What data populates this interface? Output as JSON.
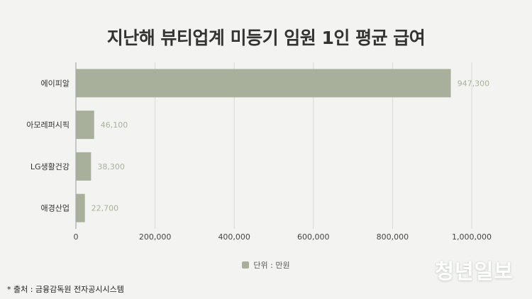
{
  "colors": {
    "bar": "#a8b09b",
    "value_label": "#a9b09c",
    "grid": "#d8dad6",
    "axis": "#999999"
  },
  "chart_data": {
    "type": "bar",
    "orientation": "horizontal",
    "title": "지난해 뷰티업계 미등기 임원 1인 평균 급여",
    "categories": [
      "에이피알",
      "아모레퍼시픽",
      "LG생활건강",
      "애경산업"
    ],
    "values": [
      947300,
      46100,
      38300,
      22700
    ],
    "value_labels": [
      "947,300",
      "46,100",
      "38,300",
      "22,700"
    ],
    "xlim": [
      0,
      1000000
    ],
    "x_ticks": [
      0,
      200000,
      400000,
      600000,
      800000,
      1000000
    ],
    "x_tick_labels": [
      "0",
      "200,000",
      "400,000",
      "600,000",
      "800,000",
      "1,000,000"
    ],
    "grid": "vertical",
    "legend": {
      "position": "bottom",
      "label": "단위 : 만원"
    }
  },
  "source": "* 출처 : 금융감독원 전자공시시스템",
  "logo": "청년일보"
}
